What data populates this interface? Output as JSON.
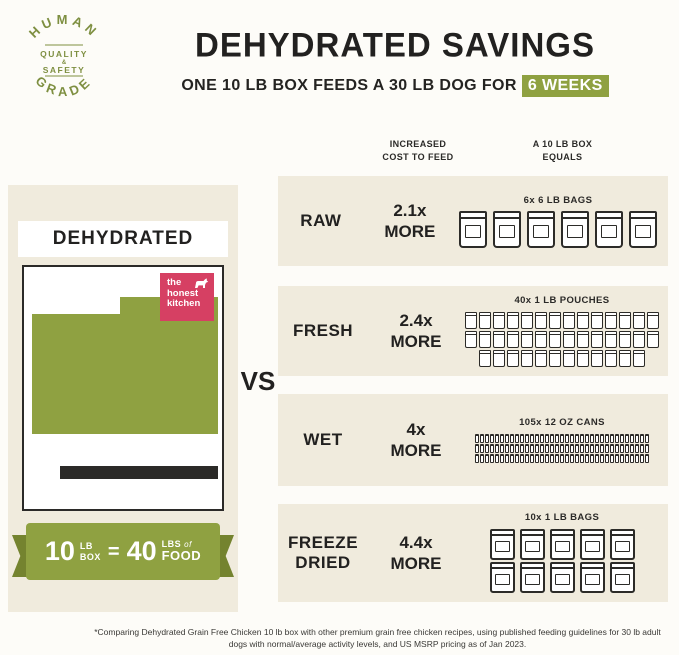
{
  "badge": {
    "arc_top": "HUMAN",
    "arc_bottom": "GRADE",
    "center_line1": "QUALITY",
    "center_amp": "&",
    "center_line2": "SAFETY"
  },
  "header": {
    "title": "DEHYDRATED SAVINGS",
    "subtitle_prefix": "ONE 10 LB BOX FEEDS A 30 LB DOG FOR",
    "subtitle_highlight": "6 WEEKS"
  },
  "columns": {
    "cost_line1": "INCREASED",
    "cost_line2": "COST TO FEED",
    "equals_line1": "A 10 LB BOX",
    "equals_line2": "EQUALS"
  },
  "left_panel": {
    "title": "DEHYDRATED",
    "logo_line1": "the",
    "logo_line2": "honest",
    "logo_line3": "kitchen"
  },
  "ribbon": {
    "qty1": "10",
    "unit1_top": "LB",
    "unit1_bottom": "BOX",
    "equals": "=",
    "qty2": "40",
    "unit2_top": "LBS",
    "unit2_of": "of",
    "unit2_bottom": "FOOD"
  },
  "vs": "VS",
  "rows": [
    {
      "label": "RAW",
      "cost": "2.1x",
      "more": "MORE",
      "equals": "6x 6 LB BAGS",
      "icon": "bag",
      "icon_count": 6
    },
    {
      "label": "FRESH",
      "cost": "2.4x",
      "more": "MORE",
      "equals": "40x 1 LB POUCHES",
      "icon": "pouch",
      "icon_count": 40
    },
    {
      "label": "WET",
      "cost": "4x",
      "more": "MORE",
      "equals": "105x 12 OZ CANS",
      "icon": "can",
      "icon_count": 105
    },
    {
      "label": "FREEZE DRIED",
      "cost": "4.4x",
      "more": "MORE",
      "equals": "10x 1 LB BAGS",
      "icon": "smallbag",
      "icon_count": 10
    }
  ],
  "footer": "*Comparing Dehydrated Grain Free Chicken 10 lb box with other premium grain free chicken recipes, using published feeding guidelines for 30 lb adult dogs with normal/average activity levels, and US MSRP pricing as of Jan 2023.",
  "colors": {
    "olive": "#8fa141",
    "cream": "#f0ebdd",
    "dark": "#242321",
    "pink": "#d64063"
  }
}
